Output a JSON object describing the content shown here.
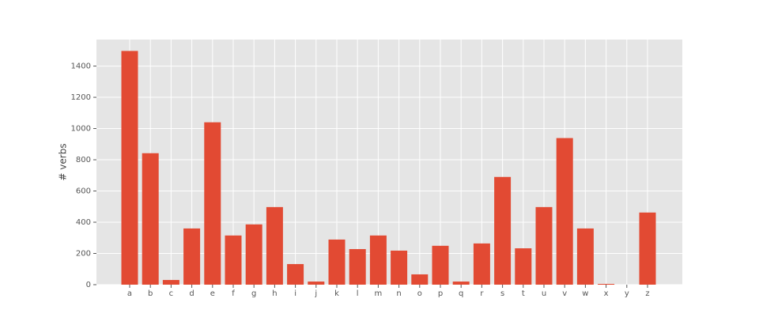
{
  "chart_data": {
    "type": "bar",
    "y_label": "# verbs",
    "categories": [
      "a",
      "b",
      "c",
      "d",
      "e",
      "f",
      "g",
      "h",
      "i",
      "j",
      "k",
      "l",
      "m",
      "n",
      "o",
      "p",
      "q",
      "r",
      "s",
      "t",
      "u",
      "v",
      "w",
      "x",
      "y",
      "z"
    ],
    "values": [
      1497,
      842,
      30,
      360,
      1040,
      315,
      386,
      497,
      132,
      20,
      289,
      228,
      315,
      218,
      66,
      249,
      20,
      264,
      690,
      233,
      497,
      939,
      360,
      5,
      0,
      462
    ],
    "color": "#e24a33",
    "ylim": [
      0,
      1570
    ],
    "yticks": [
      0,
      200,
      400,
      600,
      800,
      1000,
      1200,
      1400
    ],
    "grid": true
  }
}
